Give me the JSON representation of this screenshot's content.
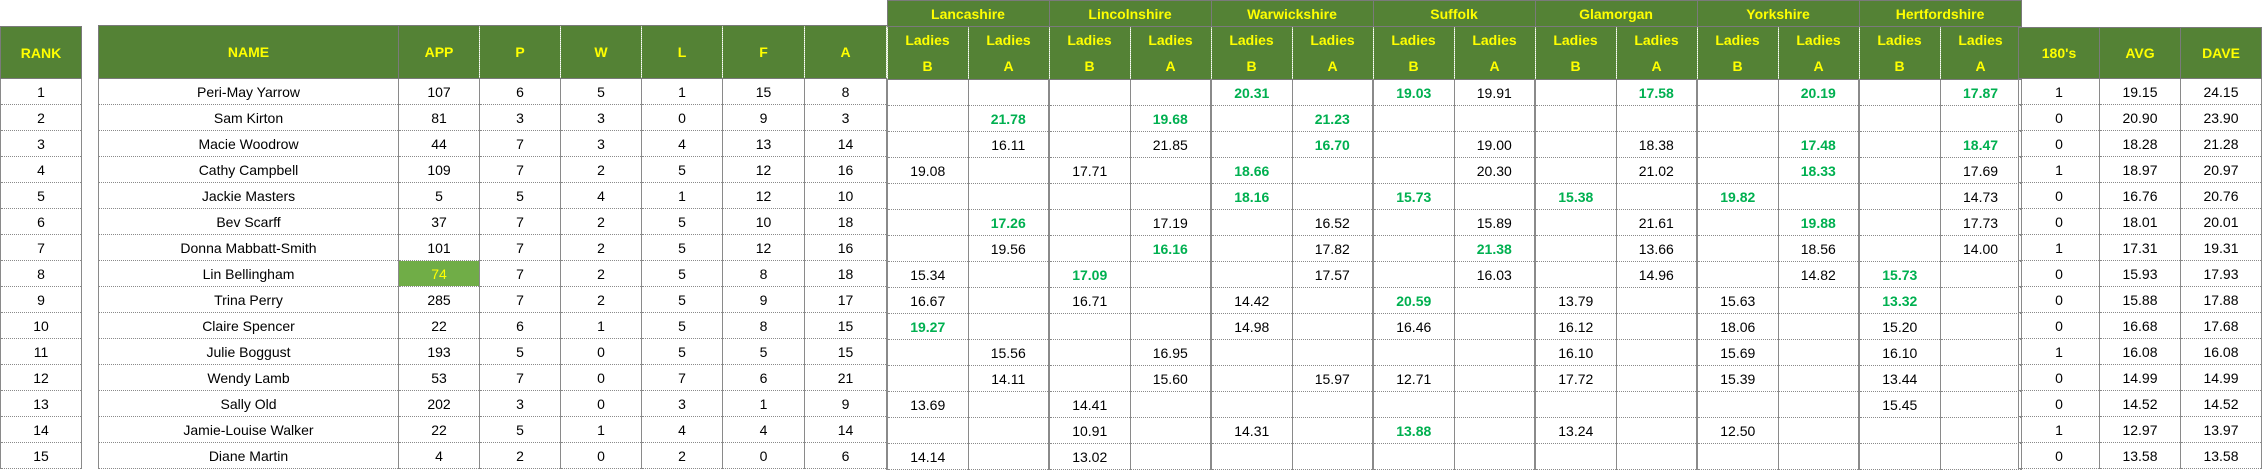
{
  "colors": {
    "header_bg": "#548235",
    "header_text": "#ffff00",
    "highlight_text": "#00b050",
    "highlight_cell_bg": "#70ad47"
  },
  "headers": {
    "rank": "RANK",
    "name": "NAME",
    "app": "APP",
    "p": "P",
    "w": "W",
    "l": "L",
    "f": "F",
    "a": "A",
    "one_eighties": "180's",
    "avg": "AVG",
    "dave": "DAVE",
    "ladies": "Ladies",
    "counties": [
      {
        "name": "Lancashire",
        "teams": [
          "B",
          "A"
        ]
      },
      {
        "name": "Lincolnshire",
        "teams": [
          "B",
          "A"
        ]
      },
      {
        "name": "Warwickshire",
        "teams": [
          "B",
          "A"
        ]
      },
      {
        "name": "Suffolk",
        "teams": [
          "B",
          "A"
        ]
      },
      {
        "name": "Glamorgan",
        "teams": [
          "B",
          "A"
        ]
      },
      {
        "name": "Yorkshire",
        "teams": [
          "B",
          "A"
        ]
      },
      {
        "name": "Hertfordshire",
        "teams": [
          "B",
          "A"
        ]
      }
    ]
  },
  "rows": [
    {
      "rank": "1",
      "name": "Peri-May Yarrow",
      "app": "107",
      "p": "6",
      "w": "5",
      "l": "1",
      "f": "15",
      "a": "8",
      "scores": [
        "",
        "",
        "",
        "",
        "20.31",
        "",
        "19.03",
        "19.91",
        "",
        "17.58",
        "",
        "20.19",
        "",
        "17.87"
      ],
      "highlighted": [
        4,
        6,
        9,
        11,
        13
      ],
      "one_eighties": "1",
      "avg": "19.15",
      "dave": "24.15"
    },
    {
      "rank": "2",
      "name": "Sam Kirton",
      "app": "81",
      "p": "3",
      "w": "3",
      "l": "0",
      "f": "9",
      "a": "3",
      "scores": [
        "",
        "21.78",
        "",
        "19.68",
        "",
        "21.23",
        "",
        "",
        "",
        "",
        "",
        "",
        "",
        ""
      ],
      "highlighted": [
        1,
        3,
        5
      ],
      "one_eighties": "0",
      "avg": "20.90",
      "dave": "23.90"
    },
    {
      "rank": "3",
      "name": "Macie Woodrow",
      "app": "44",
      "p": "7",
      "w": "3",
      "l": "4",
      "f": "13",
      "a": "14",
      "scores": [
        "",
        "16.11",
        "",
        "21.85",
        "",
        "16.70",
        "",
        "19.00",
        "",
        "18.38",
        "",
        "17.48",
        "",
        "18.47"
      ],
      "highlighted": [
        5,
        11,
        13
      ],
      "one_eighties": "0",
      "avg": "18.28",
      "dave": "21.28"
    },
    {
      "rank": "4",
      "name": "Cathy Campbell",
      "app": "109",
      "p": "7",
      "w": "2",
      "l": "5",
      "f": "12",
      "a": "16",
      "scores": [
        "19.08",
        "",
        "17.71",
        "",
        "18.66",
        "",
        "",
        "20.30",
        "",
        "21.02",
        "",
        "18.33",
        "",
        "17.69"
      ],
      "highlighted": [
        4,
        11
      ],
      "one_eighties": "1",
      "avg": "18.97",
      "dave": "20.97"
    },
    {
      "rank": "5",
      "name": "Jackie Masters",
      "app": "5",
      "p": "5",
      "w": "4",
      "l": "1",
      "f": "12",
      "a": "10",
      "scores": [
        "",
        "",
        "",
        "",
        "18.16",
        "",
        "15.73",
        "",
        "15.38",
        "",
        "19.82",
        "",
        "",
        "14.73"
      ],
      "highlighted": [
        4,
        6,
        8,
        10
      ],
      "one_eighties": "0",
      "avg": "16.76",
      "dave": "20.76"
    },
    {
      "rank": "6",
      "name": "Bev Scarff",
      "app": "37",
      "p": "7",
      "w": "2",
      "l": "5",
      "f": "10",
      "a": "18",
      "scores": [
        "",
        "17.26",
        "",
        "17.19",
        "",
        "16.52",
        "",
        "15.89",
        "",
        "21.61",
        "",
        "19.88",
        "",
        "17.73"
      ],
      "highlighted": [
        1,
        11
      ],
      "one_eighties": "0",
      "avg": "18.01",
      "dave": "20.01"
    },
    {
      "rank": "7",
      "name": "Donna Mabbatt-Smith",
      "app": "101",
      "p": "7",
      "w": "2",
      "l": "5",
      "f": "12",
      "a": "16",
      "scores": [
        "",
        "19.56",
        "",
        "16.16",
        "",
        "17.82",
        "",
        "21.38",
        "",
        "13.66",
        "",
        "18.56",
        "",
        "14.00"
      ],
      "highlighted": [
        3,
        7
      ],
      "one_eighties": "1",
      "avg": "17.31",
      "dave": "19.31"
    },
    {
      "rank": "8",
      "name": "Lin Bellingham",
      "app": "74",
      "app_highlighted": true,
      "p": "7",
      "w": "2",
      "l": "5",
      "f": "8",
      "a": "18",
      "scores": [
        "15.34",
        "",
        "17.09",
        "",
        "",
        "17.57",
        "",
        "16.03",
        "",
        "14.96",
        "",
        "14.82",
        "15.73",
        ""
      ],
      "highlighted": [
        2,
        12
      ],
      "one_eighties": "0",
      "avg": "15.93",
      "dave": "17.93"
    },
    {
      "rank": "9",
      "name": "Trina Perry",
      "app": "285",
      "p": "7",
      "w": "2",
      "l": "5",
      "f": "9",
      "a": "17",
      "scores": [
        "16.67",
        "",
        "16.71",
        "",
        "14.42",
        "",
        "20.59",
        "",
        "13.79",
        "",
        "15.63",
        "",
        "13.32",
        ""
      ],
      "highlighted": [
        6,
        12
      ],
      "one_eighties": "0",
      "avg": "15.88",
      "dave": "17.88"
    },
    {
      "rank": "10",
      "name": "Claire Spencer",
      "app": "22",
      "p": "6",
      "w": "1",
      "l": "5",
      "f": "8",
      "a": "15",
      "scores": [
        "19.27",
        "",
        "",
        "",
        "14.98",
        "",
        "16.46",
        "",
        "16.12",
        "",
        "18.06",
        "",
        "15.20",
        ""
      ],
      "highlighted": [
        0
      ],
      "one_eighties": "0",
      "avg": "16.68",
      "dave": "17.68"
    },
    {
      "rank": "11",
      "name": "Julie Boggust",
      "app": "193",
      "p": "5",
      "w": "0",
      "l": "5",
      "f": "5",
      "a": "15",
      "scores": [
        "",
        "15.56",
        "",
        "16.95",
        "",
        "",
        "",
        "",
        "16.10",
        "",
        "15.69",
        "",
        "16.10",
        ""
      ],
      "highlighted": [],
      "one_eighties": "1",
      "avg": "16.08",
      "dave": "16.08"
    },
    {
      "rank": "12",
      "name": "Wendy Lamb",
      "app": "53",
      "p": "7",
      "w": "0",
      "l": "7",
      "f": "6",
      "a": "21",
      "scores": [
        "",
        "14.11",
        "",
        "15.60",
        "",
        "15.97",
        "12.71",
        "",
        "17.72",
        "",
        "15.39",
        "",
        "13.44",
        ""
      ],
      "highlighted": [],
      "one_eighties": "0",
      "avg": "14.99",
      "dave": "14.99"
    },
    {
      "rank": "13",
      "name": "Sally Old",
      "app": "202",
      "p": "3",
      "w": "0",
      "l": "3",
      "f": "1",
      "a": "9",
      "scores": [
        "13.69",
        "",
        "14.41",
        "",
        "",
        "",
        "",
        "",
        "",
        "",
        "",
        "",
        "15.45",
        ""
      ],
      "highlighted": [],
      "one_eighties": "0",
      "avg": "14.52",
      "dave": "14.52"
    },
    {
      "rank": "14",
      "name": "Jamie-Louise Walker",
      "app": "22",
      "p": "5",
      "w": "1",
      "l": "4",
      "f": "4",
      "a": "14",
      "scores": [
        "",
        "",
        "10.91",
        "",
        "14.31",
        "",
        "13.88",
        "",
        "13.24",
        "",
        "12.50",
        "",
        "",
        ""
      ],
      "highlighted": [
        6
      ],
      "one_eighties": "1",
      "avg": "12.97",
      "dave": "13.97"
    },
    {
      "rank": "15",
      "name": "Diane Martin",
      "app": "4",
      "p": "2",
      "w": "0",
      "l": "2",
      "f": "0",
      "a": "6",
      "scores": [
        "14.14",
        "",
        "13.02",
        "",
        "",
        "",
        "",
        "",
        "",
        "",
        "",
        "",
        "",
        ""
      ],
      "highlighted": [],
      "one_eighties": "0",
      "avg": "13.58",
      "dave": "13.58"
    }
  ]
}
